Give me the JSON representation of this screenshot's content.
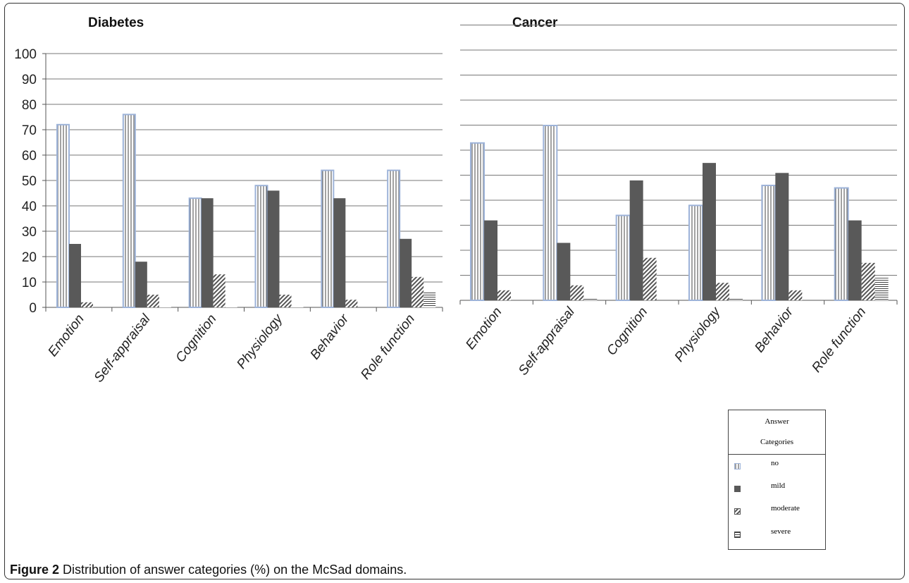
{
  "caption": {
    "label": "Figure 2",
    "text": "Distribution of answer categories (%) on the McSad domains."
  },
  "legend": {
    "title_line1": "Answer",
    "title_line2": "Categories",
    "items": [
      "no",
      "mild",
      "moderate",
      "severe"
    ]
  },
  "colors": {
    "no_border": "#9db3d9",
    "mild": "#595959",
    "hatch": "#555555",
    "grid": "#777777"
  },
  "chart_data": [
    {
      "type": "bar",
      "title": "Diabetes",
      "categories": [
        "Emotion",
        "Self-appraisal",
        "Cognition",
        "Physiology",
        "Behavior",
        "Role function"
      ],
      "series": [
        {
          "name": "no",
          "values": [
            72,
            76,
            43,
            48,
            54,
            54
          ]
        },
        {
          "name": "mild",
          "values": [
            25,
            18,
            43,
            46,
            43,
            27
          ]
        },
        {
          "name": "moderate",
          "values": [
            2,
            5,
            13,
            5,
            3,
            12
          ]
        },
        {
          "name": "severe",
          "values": [
            0,
            0.5,
            0.5,
            0.5,
            0,
            6
          ]
        }
      ],
      "ylim": [
        0,
        100
      ],
      "yticks": [
        "0",
        "10",
        "20",
        "30",
        "40",
        "50",
        "60",
        "70",
        "80",
        "90",
        "100"
      ],
      "grid": true
    },
    {
      "type": "bar",
      "title": "Cancer",
      "categories": [
        "Emotion",
        "Self-appraisal",
        "Cognition",
        "Physiology",
        "Behavior",
        "Role function"
      ],
      "series": [
        {
          "name": "no",
          "values": [
            63,
            70,
            34,
            38,
            46,
            45
          ]
        },
        {
          "name": "mild",
          "values": [
            32,
            23,
            48,
            55,
            51,
            32
          ]
        },
        {
          "name": "moderate",
          "values": [
            4,
            6,
            17,
            7,
            4,
            15
          ]
        },
        {
          "name": "severe",
          "values": [
            0,
            1,
            0,
            1,
            0,
            9
          ]
        }
      ],
      "ylim": [
        0,
        70
      ],
      "yticks": [],
      "grid": true
    }
  ]
}
